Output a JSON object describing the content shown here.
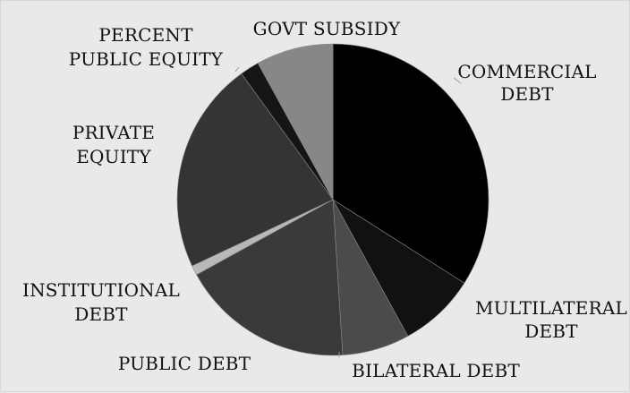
{
  "chart_data": {
    "type": "pie",
    "title": "",
    "categories": [
      "COMMERCIAL DEBT",
      "MULTILATERAL DEBT",
      "BILATERAL DEBT",
      "PUBLIC DEBT",
      "INSTITUTIONAL DEBT",
      "PRIVATE EQUITY",
      "PERCENT PUBLIC EQUITY",
      "GOVT SUBSIDY"
    ],
    "values": [
      34,
      8,
      7,
      18,
      1,
      22,
      2,
      8
    ],
    "colors": [
      "#000000",
      "#111111",
      "#4b4b4b",
      "#3a3a3a",
      "#b9b9b9",
      "#343434",
      "#151515",
      "#878787"
    ],
    "labels": [
      {
        "lines": [
          "COMMERCIAL",
          "DEBT"
        ]
      },
      {
        "lines": [
          "MULTILATERAL",
          "DEBT"
        ]
      },
      {
        "lines": [
          "BILATERAL DEBT"
        ]
      },
      {
        "lines": [
          "PUBLIC DEBT"
        ]
      },
      {
        "lines": [
          "INSTITUTIONAL",
          "DEBT"
        ]
      },
      {
        "lines": [
          "PRIVATE",
          "EQUITY"
        ]
      },
      {
        "lines": [
          "PERCENT",
          "PUBLIC EQUITY"
        ]
      },
      {
        "lines": [
          "GOVT SUBSIDY"
        ]
      }
    ],
    "legend": "none",
    "data_labels": "outside, category names"
  }
}
